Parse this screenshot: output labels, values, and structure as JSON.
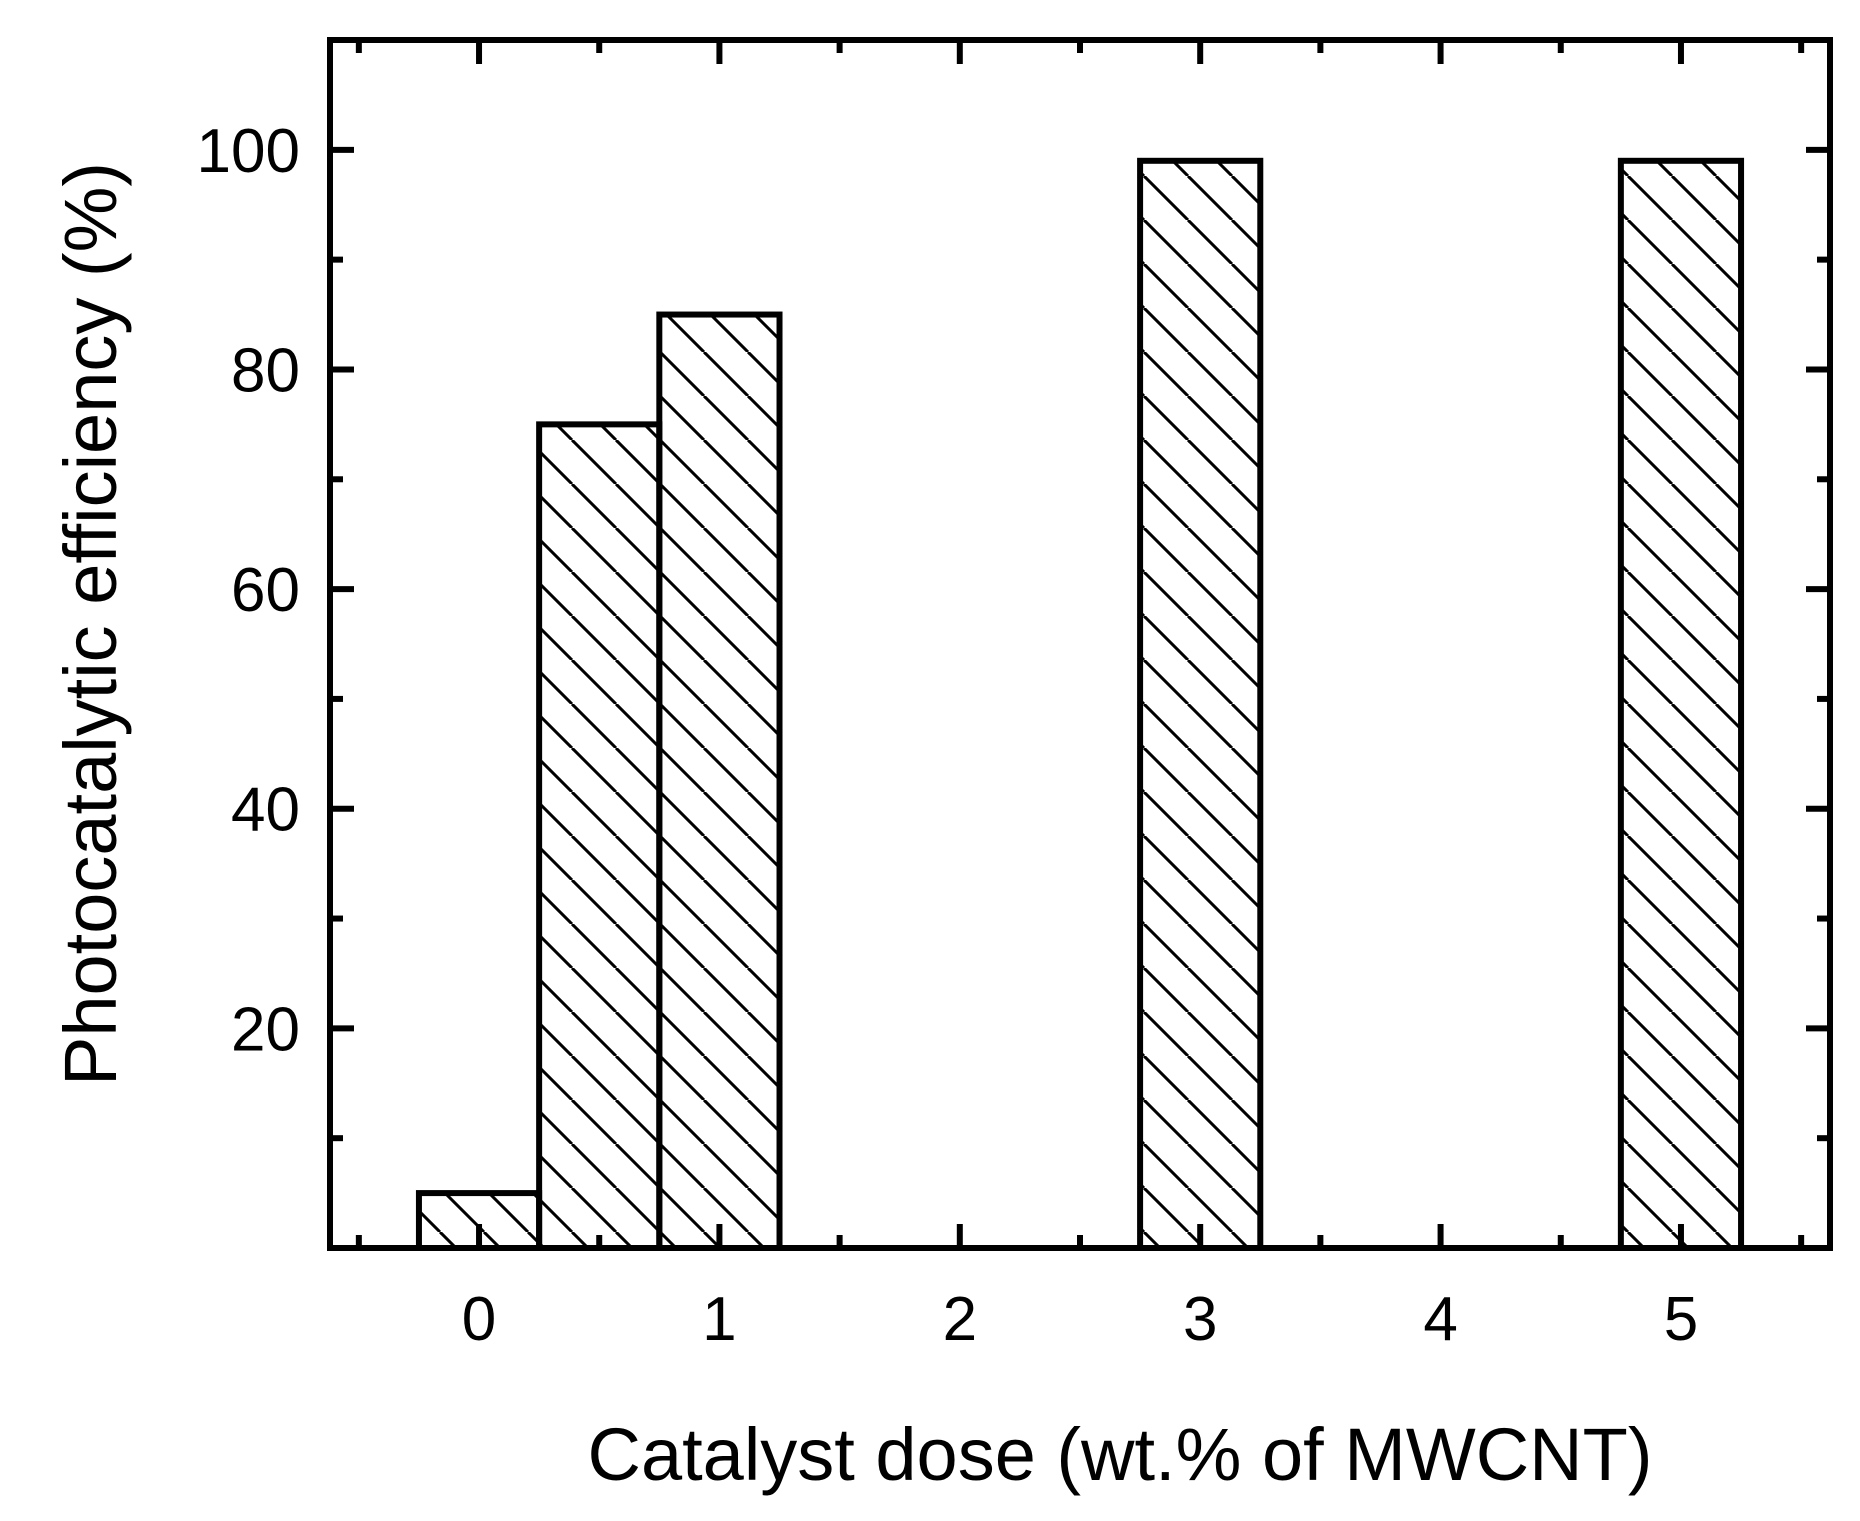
{
  "chart_data": {
    "type": "bar",
    "title": "",
    "xlabel": "Catalyst dose (wt.% of MWCNT)",
    "ylabel": "Photocatalytic efficiency (%)",
    "x": [
      0,
      0.5,
      1,
      3,
      5
    ],
    "values": [
      5,
      75,
      85,
      99,
      99
    ],
    "bar_width": 0.5,
    "xlim": [
      -0.62,
      5.62
    ],
    "ylim": [
      0,
      110
    ],
    "x_ticks": [
      0,
      1,
      2,
      3,
      4,
      5
    ],
    "x_tick_labels": [
      "0",
      "1",
      "2",
      "3",
      "4",
      "5"
    ],
    "y_ticks": [
      20,
      40,
      60,
      80,
      100
    ],
    "y_tick_labels": [
      "20",
      "40",
      "60",
      "80",
      "100"
    ],
    "fill": "diagonal hatch",
    "bar_color": "#000000",
    "grid": false,
    "legend": "none"
  }
}
